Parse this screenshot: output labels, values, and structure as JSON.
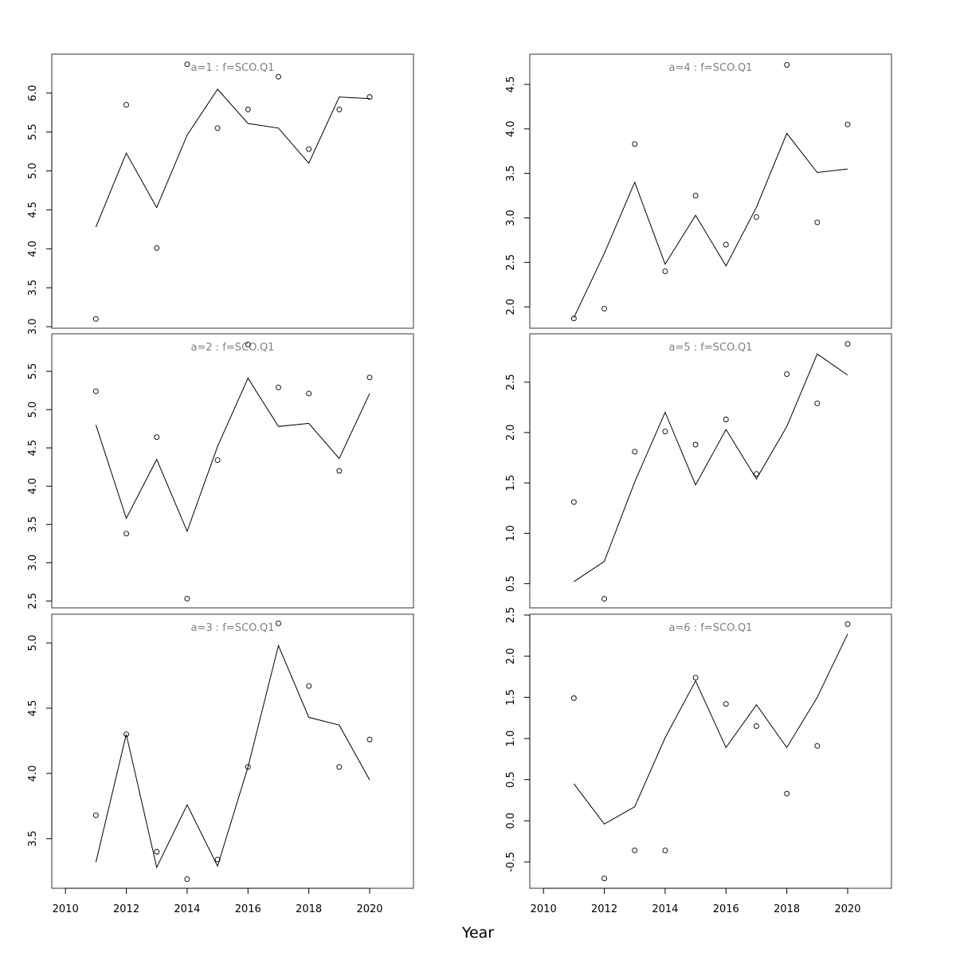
{
  "chart_data": {
    "type": "line",
    "xlabel": "Year",
    "x": [
      2011,
      2012,
      2013,
      2014,
      2015,
      2016,
      2017,
      2018,
      2019,
      2020
    ],
    "xlim": [
      2009.55,
      2021.44
    ],
    "xticks": [
      2010,
      2012,
      2014,
      2016,
      2018,
      2020
    ],
    "title_color": "#808080",
    "panels": [
      {
        "title": "a=1  :  f=SCO.Q1",
        "ylim": [
          2.98,
          6.5
        ],
        "yticks": [
          3.0,
          3.5,
          4.0,
          4.5,
          5.0,
          5.5,
          6.0
        ],
        "points": [
          3.1,
          5.85,
          4.01,
          6.37,
          5.55,
          5.79,
          6.21,
          5.28,
          5.79,
          5.95
        ],
        "line": [
          4.28,
          5.23,
          4.53,
          5.46,
          6.05,
          5.61,
          5.55,
          5.1,
          5.95,
          5.93
        ]
      },
      {
        "title": "a=2  :  f=SCO.Q1",
        "ylim": [
          2.41,
          5.99
        ],
        "yticks": [
          2.5,
          3.0,
          3.5,
          4.0,
          4.5,
          5.0,
          5.5
        ],
        "points": [
          5.24,
          3.38,
          4.64,
          2.53,
          4.34,
          5.85,
          5.29,
          5.21,
          4.2,
          5.42
        ],
        "line": [
          4.8,
          3.58,
          4.35,
          3.41,
          4.52,
          5.41,
          4.78,
          4.82,
          4.36,
          5.21
        ]
      },
      {
        "title": "a=3  :  f=SCO.Q1",
        "ylim": [
          3.12,
          5.22
        ],
        "yticks": [
          3.5,
          4.0,
          4.5,
          5.0
        ],
        "points": [
          3.68,
          4.3,
          3.4,
          3.19,
          3.34,
          4.05,
          5.15,
          4.67,
          4.05,
          4.26
        ],
        "line": [
          3.32,
          4.3,
          3.28,
          3.76,
          3.29,
          4.05,
          4.98,
          4.43,
          4.37,
          3.95
        ]
      },
      {
        "title": "a=4  :  f=SCO.Q1",
        "ylim": [
          1.76,
          4.84
        ],
        "yticks": [
          2.0,
          2.5,
          3.0,
          3.5,
          4.0,
          4.5
        ],
        "points": [
          1.87,
          1.98,
          3.83,
          2.4,
          3.25,
          2.7,
          3.01,
          4.72,
          2.95,
          4.05
        ],
        "line": [
          1.88,
          2.6,
          3.4,
          2.48,
          3.03,
          2.46,
          3.12,
          3.95,
          3.51,
          3.55
        ]
      },
      {
        "title": "a=5  :  f=SCO.Q1",
        "ylim": [
          0.26,
          2.98
        ],
        "yticks": [
          0.5,
          1.0,
          1.5,
          2.0,
          2.5
        ],
        "points": [
          1.31,
          0.35,
          1.81,
          2.01,
          1.88,
          2.13,
          1.59,
          2.58,
          2.29,
          2.88
        ],
        "line": [
          0.52,
          0.72,
          1.51,
          2.2,
          1.48,
          2.03,
          1.54,
          2.06,
          2.78,
          2.57
        ]
      },
      {
        "title": "a=6  :  f=SCO.Q1",
        "ylim": [
          -0.82,
          2.51
        ],
        "yticks": [
          -0.5,
          0.0,
          0.5,
          1.0,
          1.5,
          2.0,
          2.5
        ],
        "points": [
          1.49,
          -0.7,
          -0.36,
          -0.36,
          1.74,
          1.42,
          1.15,
          0.33,
          0.91,
          2.39
        ],
        "line": [
          0.45,
          -0.04,
          0.17,
          1.01,
          1.7,
          0.89,
          1.41,
          0.89,
          1.5,
          2.27
        ]
      }
    ]
  }
}
